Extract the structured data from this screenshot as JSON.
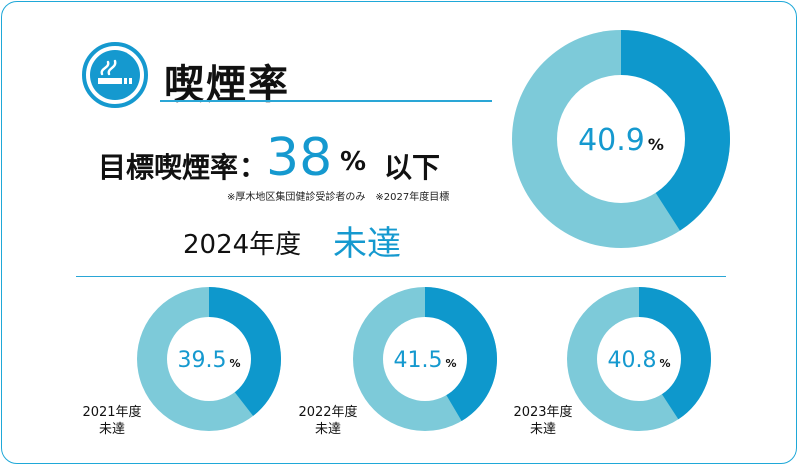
{
  "header": {
    "title": "喫煙率",
    "icon": "smoking-cigarette-icon"
  },
  "target": {
    "label": "目標喫煙率",
    "colon": "：",
    "value": "38",
    "unit": "%",
    "suffix": "以下",
    "note": "※厚木地区集団健診受診者のみ　※2027年度目標"
  },
  "current": {
    "year_label": "2024年度",
    "status": "未達"
  },
  "colors": {
    "dark": "#0e98cc",
    "light": "#7dcad9",
    "accent_text": "#1599cf",
    "border": "#1fa8d8"
  },
  "chart_data": [
    {
      "type": "pie",
      "variant": "donut",
      "value": 40.9,
      "value_label": "40.9",
      "unit": "%",
      "year": "2024年度",
      "status": "未達"
    },
    {
      "type": "pie",
      "variant": "donut",
      "value": 39.5,
      "value_label": "39.5",
      "unit": "%",
      "year": "2021年度",
      "status": "未達"
    },
    {
      "type": "pie",
      "variant": "donut",
      "value": 41.5,
      "value_label": "41.5",
      "unit": "%",
      "year": "2022年度",
      "status": "未達"
    },
    {
      "type": "pie",
      "variant": "donut",
      "value": 40.8,
      "value_label": "40.8",
      "unit": "%",
      "year": "2023年度",
      "status": "未達"
    }
  ]
}
